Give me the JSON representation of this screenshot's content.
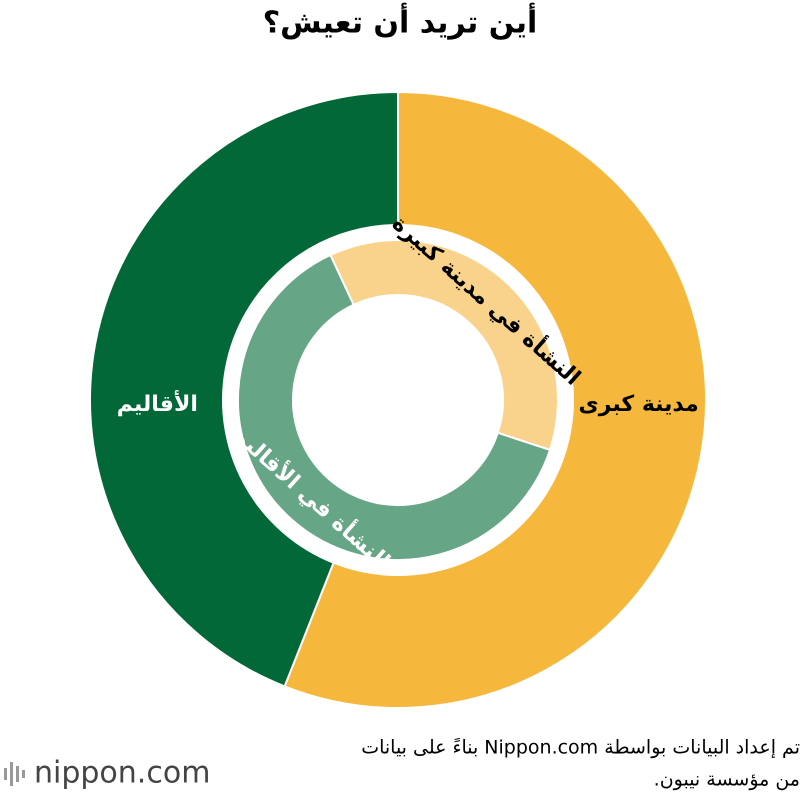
{
  "chart_data": {
    "type": "donut",
    "title": "أين تريد أن تعيش؟",
    "rings": [
      {
        "labels": [
          "مدينة كبرى",
          "الأقاليم"
        ],
        "values": [
          56,
          44
        ],
        "colors": [
          "#f5b83d",
          "#026837"
        ],
        "label_colors": [
          "#000000",
          "#ffffff"
        ]
      },
      {
        "labels": [
          "النشأة في مدينة كبيرة",
          "النشأة في الأقاليم"
        ],
        "values": [
          37,
          63
        ],
        "colors": [
          "#f9d38b",
          "#66a585"
        ],
        "label_colors": [
          "#000000",
          "#ffffff"
        ]
      }
    ],
    "source_lines": [
      "تم إعداد البيانات بواسطة Nippon.com بناءً على بيانات",
      "من مؤسسة نيبون."
    ],
    "logo": "nippon.com"
  }
}
